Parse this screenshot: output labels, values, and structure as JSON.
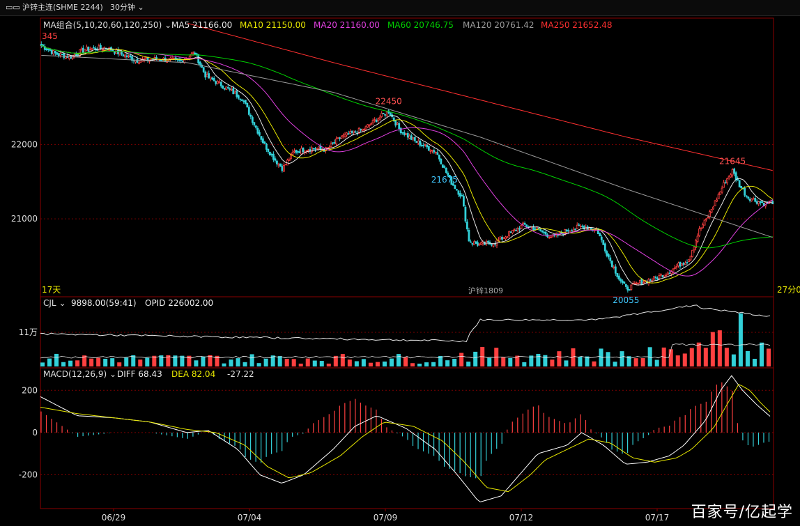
{
  "topbar": {
    "symbol": "沪锌主连(SHME 2244)",
    "period": "30分钟"
  },
  "price_panel": {
    "ma_group_label": "MA组合(5,10,20,60,120,250)",
    "ma_items": [
      {
        "label": "MA5 21166.00",
        "color": "#e6e6e6"
      },
      {
        "label": "MA10 21150.00",
        "color": "#e6e600"
      },
      {
        "label": "MA20 21160.00",
        "color": "#e040e0"
      },
      {
        "label": "MA60 20746.75",
        "color": "#00d000"
      },
      {
        "label": "MA120 20761.42",
        "color": "#9a9a9a"
      },
      {
        "label": "MA250 21652.48",
        "color": "#ff3030"
      }
    ],
    "left_corner_label": "345",
    "bottom_left_label": "17天",
    "bottom_right_label": "27分0",
    "contract_label": "沪锌1809"
  },
  "volume_panel": {
    "label": "CJL",
    "value": "9898.00(59:41)",
    "opid": "OPID 226002.00",
    "y_tick": "11万"
  },
  "macd_panel": {
    "label": "MACD(12,26,9)",
    "diff": "DIFF 68.43",
    "dea": "DEA 82.04",
    "macd": "-27.22"
  },
  "watermark": "百家号/亿起学",
  "colors": {
    "up": "#ff4040",
    "down": "#33d0d8",
    "grid": "#7a0000",
    "frame": "#8a0000"
  },
  "chart_data": [
    {
      "type": "candlestick",
      "yticks": [
        22000,
        21000
      ],
      "ylim": [
        19970,
        23700
      ],
      "x_ticks": [
        "06/29",
        "07/04",
        "07/09",
        "07/12",
        "07/17"
      ],
      "annotations": [
        {
          "text": "21675",
          "value": 21675,
          "kind": "low"
        },
        {
          "text": "22450",
          "value": 22450,
          "kind": "high"
        },
        {
          "text": "20055",
          "value": 20055,
          "kind": "low"
        },
        {
          "text": "21645",
          "value": 21645,
          "kind": "high"
        }
      ],
      "price_path": [
        [
          0,
          23330
        ],
        [
          0.02,
          23220
        ],
        [
          0.04,
          23180
        ],
        [
          0.06,
          23280
        ],
        [
          0.09,
          23300
        ],
        [
          0.13,
          23130
        ],
        [
          0.16,
          23150
        ],
        [
          0.19,
          23120
        ],
        [
          0.21,
          23230
        ],
        [
          0.225,
          22920
        ],
        [
          0.25,
          22780
        ],
        [
          0.275,
          22620
        ],
        [
          0.29,
          22300
        ],
        [
          0.305,
          22000
        ],
        [
          0.32,
          21790
        ],
        [
          0.33,
          21675
        ],
        [
          0.345,
          21900
        ],
        [
          0.37,
          21950
        ],
        [
          0.39,
          21930
        ],
        [
          0.41,
          22100
        ],
        [
          0.44,
          22200
        ],
        [
          0.46,
          22350
        ],
        [
          0.475,
          22450
        ],
        [
          0.49,
          22200
        ],
        [
          0.51,
          22050
        ],
        [
          0.54,
          21900
        ],
        [
          0.56,
          21500
        ],
        [
          0.575,
          21300
        ],
        [
          0.585,
          20700
        ],
        [
          0.6,
          20650
        ],
        [
          0.62,
          20680
        ],
        [
          0.64,
          20800
        ],
        [
          0.66,
          20920
        ],
        [
          0.68,
          20850
        ],
        [
          0.7,
          20750
        ],
        [
          0.72,
          20850
        ],
        [
          0.74,
          20900
        ],
        [
          0.76,
          20850
        ],
        [
          0.775,
          20500
        ],
        [
          0.79,
          20200
        ],
        [
          0.8,
          20055
        ],
        [
          0.82,
          20150
        ],
        [
          0.84,
          20200
        ],
        [
          0.86,
          20300
        ],
        [
          0.875,
          20400
        ],
        [
          0.885,
          20450
        ],
        [
          0.9,
          20850
        ],
        [
          0.91,
          21000
        ],
        [
          0.925,
          21300
        ],
        [
          0.935,
          21500
        ],
        [
          0.945,
          21645
        ],
        [
          0.955,
          21450
        ],
        [
          0.965,
          21300
        ],
        [
          0.975,
          21250
        ],
        [
          0.99,
          21200
        ],
        [
          1.0,
          21230
        ]
      ],
      "ma_series": [
        {
          "name": "MA5",
          "color": "#e6e6e6",
          "lag": 2,
          "width": 1
        },
        {
          "name": "MA10",
          "color": "#e6e600",
          "lag": 4,
          "width": 1
        },
        {
          "name": "MA20",
          "color": "#e040e0",
          "lag": 9,
          "width": 1
        },
        {
          "name": "MA60",
          "color": "#00d000",
          "lag": 28,
          "width": 1
        },
        {
          "name": "MA120",
          "color": "#9a9a9a",
          "path": [
            [
              0,
              23200
            ],
            [
              0.2,
              23100
            ],
            [
              0.4,
              22700
            ],
            [
              0.6,
              22100
            ],
            [
              0.8,
              21400
            ],
            [
              1.0,
              20750
            ]
          ]
        },
        {
          "name": "MA250",
          "color": "#ff3030",
          "path": [
            [
              0.2,
              23630
            ],
            [
              0.4,
              23100
            ],
            [
              0.6,
              22600
            ],
            [
              0.8,
              22100
            ],
            [
              1.0,
              21650
            ]
          ]
        }
      ]
    },
    {
      "type": "bar",
      "name": "CJL",
      "ylim": [
        0,
        220000
      ],
      "yticks": [
        110000
      ]
    },
    {
      "type": "bar",
      "name": "MACD",
      "yticks": [
        200,
        0,
        -200
      ],
      "ylim": [
        -360,
        300
      ],
      "diff_path": [
        [
          0,
          170
        ],
        [
          0.05,
          80
        ],
        [
          0.1,
          70
        ],
        [
          0.15,
          50
        ],
        [
          0.2,
          0
        ],
        [
          0.23,
          10
        ],
        [
          0.27,
          -80
        ],
        [
          0.3,
          -200
        ],
        [
          0.33,
          -240
        ],
        [
          0.36,
          -200
        ],
        [
          0.4,
          -80
        ],
        [
          0.43,
          30
        ],
        [
          0.46,
          80
        ],
        [
          0.5,
          20
        ],
        [
          0.54,
          -80
        ],
        [
          0.57,
          -200
        ],
        [
          0.6,
          -330
        ],
        [
          0.63,
          -300
        ],
        [
          0.66,
          -180
        ],
        [
          0.68,
          -100
        ],
        [
          0.72,
          -60
        ],
        [
          0.74,
          0
        ],
        [
          0.77,
          -60
        ],
        [
          0.8,
          -150
        ],
        [
          0.83,
          -140
        ],
        [
          0.86,
          -110
        ],
        [
          0.88,
          -60
        ],
        [
          0.91,
          60
        ],
        [
          0.93,
          200
        ],
        [
          0.945,
          270
        ],
        [
          0.96,
          200
        ],
        [
          0.98,
          130
        ],
        [
          1.0,
          70
        ]
      ],
      "dea_path": [
        [
          0,
          120
        ],
        [
          0.05,
          90
        ],
        [
          0.1,
          70
        ],
        [
          0.15,
          50
        ],
        [
          0.2,
          15
        ],
        [
          0.24,
          0
        ],
        [
          0.28,
          -60
        ],
        [
          0.31,
          -160
        ],
        [
          0.34,
          -215
        ],
        [
          0.37,
          -190
        ],
        [
          0.41,
          -110
        ],
        [
          0.44,
          -20
        ],
        [
          0.47,
          50
        ],
        [
          0.51,
          30
        ],
        [
          0.55,
          -40
        ],
        [
          0.58,
          -140
        ],
        [
          0.61,
          -260
        ],
        [
          0.64,
          -280
        ],
        [
          0.67,
          -200
        ],
        [
          0.69,
          -130
        ],
        [
          0.72,
          -80
        ],
        [
          0.75,
          -30
        ],
        [
          0.78,
          -50
        ],
        [
          0.81,
          -120
        ],
        [
          0.84,
          -140
        ],
        [
          0.87,
          -120
        ],
        [
          0.89,
          -80
        ],
        [
          0.92,
          20
        ],
        [
          0.94,
          140
        ],
        [
          0.955,
          230
        ],
        [
          0.97,
          200
        ],
        [
          0.985,
          140
        ],
        [
          1.0,
          90
        ]
      ]
    }
  ]
}
